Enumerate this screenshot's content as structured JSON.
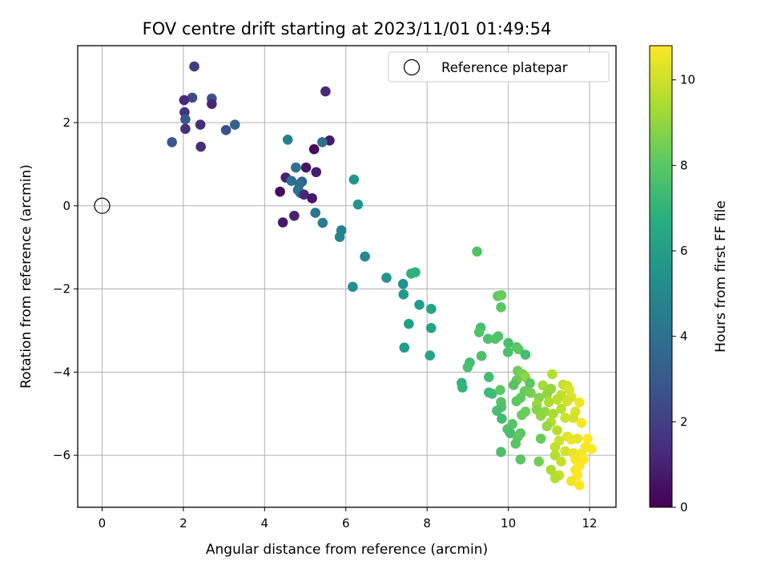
{
  "chart_data": {
    "type": "scatter",
    "title": "FOV centre drift starting at 2023/11/01 01:49:54",
    "xlabel": "Angular distance from reference (arcmin)",
    "ylabel": "Rotation from reference (arcmin)",
    "xlim": [
      -0.6,
      12.65
    ],
    "ylim": [
      -7.25,
      3.85
    ],
    "xticks": [
      0,
      2,
      4,
      6,
      8,
      10,
      12
    ],
    "yticks": [
      -6,
      -4,
      -2,
      0,
      2
    ],
    "grid": true,
    "legend": {
      "placement": "top-right",
      "entries": [
        "Reference platepar"
      ]
    },
    "reference_point": {
      "x": 0,
      "y": 0,
      "label": "Reference platepar"
    },
    "colorbar": {
      "label": "Hours from first FF file",
      "colormap": "viridis",
      "range": [
        0,
        10.8
      ],
      "ticks": [
        0,
        2,
        4,
        6,
        8,
        10
      ]
    },
    "points": [
      {
        "x": 2.27,
        "y": 3.35,
        "c": 2.0
      },
      {
        "x": 2.22,
        "y": 2.6,
        "c": 2.5
      },
      {
        "x": 2.02,
        "y": 2.54,
        "c": 1.3
      },
      {
        "x": 2.7,
        "y": 2.58,
        "c": 2.8
      },
      {
        "x": 2.7,
        "y": 2.45,
        "c": 1.2
      },
      {
        "x": 2.03,
        "y": 2.25,
        "c": 1.6
      },
      {
        "x": 2.05,
        "y": 2.08,
        "c": 3.0
      },
      {
        "x": 2.05,
        "y": 1.85,
        "c": 1.5
      },
      {
        "x": 2.42,
        "y": 1.95,
        "c": 1.4
      },
      {
        "x": 3.27,
        "y": 1.95,
        "c": 3.4
      },
      {
        "x": 3.05,
        "y": 1.82,
        "c": 2.6
      },
      {
        "x": 1.72,
        "y": 1.53,
        "c": 2.9
      },
      {
        "x": 2.43,
        "y": 1.42,
        "c": 1.4
      },
      {
        "x": 5.5,
        "y": 2.75,
        "c": 1.2
      },
      {
        "x": 4.57,
        "y": 1.59,
        "c": 4.7
      },
      {
        "x": 5.6,
        "y": 1.57,
        "c": 0.8
      },
      {
        "x": 5.42,
        "y": 1.53,
        "c": 3.9
      },
      {
        "x": 5.22,
        "y": 1.36,
        "c": 0.2
      },
      {
        "x": 4.77,
        "y": 0.92,
        "c": 4.0
      },
      {
        "x": 5.02,
        "y": 0.92,
        "c": 0.6
      },
      {
        "x": 5.27,
        "y": 0.81,
        "c": 0.9
      },
      {
        "x": 4.52,
        "y": 0.68,
        "c": 1.0
      },
      {
        "x": 4.66,
        "y": 0.6,
        "c": 4.0
      },
      {
        "x": 4.92,
        "y": 0.58,
        "c": 3.4
      },
      {
        "x": 4.86,
        "y": 0.52,
        "c": 3.8
      },
      {
        "x": 4.82,
        "y": 0.38,
        "c": 4.1
      },
      {
        "x": 4.38,
        "y": 0.34,
        "c": 0.2
      },
      {
        "x": 4.88,
        "y": 0.31,
        "c": 4.0
      },
      {
        "x": 4.97,
        "y": 0.27,
        "c": 1.2
      },
      {
        "x": 5.17,
        "y": 0.18,
        "c": 0.7
      },
      {
        "x": 6.2,
        "y": 0.63,
        "c": 5.7
      },
      {
        "x": 6.3,
        "y": 0.03,
        "c": 5.6
      },
      {
        "x": 5.25,
        "y": -0.17,
        "c": 4.2
      },
      {
        "x": 4.73,
        "y": -0.24,
        "c": 1.0
      },
      {
        "x": 4.45,
        "y": -0.4,
        "c": 0.8
      },
      {
        "x": 5.43,
        "y": -0.41,
        "c": 4.5
      },
      {
        "x": 5.89,
        "y": -0.59,
        "c": 4.8
      },
      {
        "x": 5.85,
        "y": -0.75,
        "c": 4.9
      },
      {
        "x": 6.47,
        "y": -1.22,
        "c": 5.0
      },
      {
        "x": 6.17,
        "y": -1.95,
        "c": 5.3
      },
      {
        "x": 7.0,
        "y": -1.73,
        "c": 5.6
      },
      {
        "x": 7.41,
        "y": -1.88,
        "c": 5.4
      },
      {
        "x": 7.61,
        "y": -1.63,
        "c": 6.8
      },
      {
        "x": 7.71,
        "y": -1.6,
        "c": 6.9
      },
      {
        "x": 7.42,
        "y": -2.13,
        "c": 5.8
      },
      {
        "x": 7.81,
        "y": -2.38,
        "c": 6.0
      },
      {
        "x": 8.1,
        "y": -2.48,
        "c": 6.3
      },
      {
        "x": 7.55,
        "y": -2.84,
        "c": 6.1
      },
      {
        "x": 8.1,
        "y": -2.94,
        "c": 6.2
      },
      {
        "x": 7.44,
        "y": -3.41,
        "c": 5.9
      },
      {
        "x": 8.07,
        "y": -3.6,
        "c": 6.4
      },
      {
        "x": 9.23,
        "y": -1.1,
        "c": 7.8
      },
      {
        "x": 9.74,
        "y": -2.17,
        "c": 8.1
      },
      {
        "x": 9.83,
        "y": -2.15,
        "c": 8.3
      },
      {
        "x": 9.82,
        "y": -2.44,
        "c": 8.0
      },
      {
        "x": 9.32,
        "y": -2.93,
        "c": 7.5
      },
      {
        "x": 9.28,
        "y": -3.04,
        "c": 7.8
      },
      {
        "x": 9.5,
        "y": -3.2,
        "c": 7.7
      },
      {
        "x": 9.68,
        "y": -3.2,
        "c": 7.9
      },
      {
        "x": 9.75,
        "y": -3.14,
        "c": 7.8
      },
      {
        "x": 10.0,
        "y": -3.3,
        "c": 7.6
      },
      {
        "x": 9.99,
        "y": -3.52,
        "c": 7.7
      },
      {
        "x": 10.2,
        "y": -3.4,
        "c": 7.9
      },
      {
        "x": 10.25,
        "y": -3.45,
        "c": 8.0
      },
      {
        "x": 10.42,
        "y": -3.58,
        "c": 7.5
      },
      {
        "x": 9.34,
        "y": -3.61,
        "c": 7.7
      },
      {
        "x": 9.05,
        "y": -3.77,
        "c": 7.4
      },
      {
        "x": 9.0,
        "y": -3.88,
        "c": 7.6
      },
      {
        "x": 10.23,
        "y": -3.97,
        "c": 8.4
      },
      {
        "x": 10.35,
        "y": -4.05,
        "c": 8.6
      },
      {
        "x": 10.42,
        "y": -4.12,
        "c": 8.9
      },
      {
        "x": 10.2,
        "y": -4.2,
        "c": 8.3
      },
      {
        "x": 10.53,
        "y": -4.27,
        "c": 8.0
      },
      {
        "x": 10.13,
        "y": -4.31,
        "c": 7.9
      },
      {
        "x": 9.52,
        "y": -4.12,
        "c": 7.5
      },
      {
        "x": 8.85,
        "y": -4.26,
        "c": 7.0
      },
      {
        "x": 8.87,
        "y": -4.37,
        "c": 7.1
      },
      {
        "x": 9.52,
        "y": -4.49,
        "c": 7.3
      },
      {
        "x": 9.6,
        "y": -4.52,
        "c": 7.4
      },
      {
        "x": 9.8,
        "y": -4.43,
        "c": 8.0
      },
      {
        "x": 10.4,
        "y": -4.46,
        "c": 8.3
      },
      {
        "x": 10.55,
        "y": -4.5,
        "c": 8.5
      },
      {
        "x": 10.3,
        "y": -4.62,
        "c": 8.2
      },
      {
        "x": 10.2,
        "y": -4.7,
        "c": 8.1
      },
      {
        "x": 9.82,
        "y": -4.72,
        "c": 7.9
      },
      {
        "x": 9.83,
        "y": -4.84,
        "c": 7.8
      },
      {
        "x": 9.72,
        "y": -4.93,
        "c": 7.6
      },
      {
        "x": 10.42,
        "y": -4.95,
        "c": 8.4
      },
      {
        "x": 10.33,
        "y": -5.03,
        "c": 8.3
      },
      {
        "x": 9.84,
        "y": -5.12,
        "c": 7.5
      },
      {
        "x": 10.1,
        "y": -5.25,
        "c": 7.9
      },
      {
        "x": 9.98,
        "y": -5.37,
        "c": 7.8
      },
      {
        "x": 10.05,
        "y": -5.47,
        "c": 7.6
      },
      {
        "x": 10.3,
        "y": -5.47,
        "c": 8.0
      },
      {
        "x": 10.23,
        "y": -5.56,
        "c": 8.1
      },
      {
        "x": 10.18,
        "y": -5.72,
        "c": 7.9
      },
      {
        "x": 9.82,
        "y": -5.92,
        "c": 7.7
      },
      {
        "x": 10.3,
        "y": -6.1,
        "c": 8.0
      },
      {
        "x": 10.8,
        "y": -5.6,
        "c": 8.3
      },
      {
        "x": 10.75,
        "y": -6.15,
        "c": 8.5
      },
      {
        "x": 11.08,
        "y": -4.05,
        "c": 9.6
      },
      {
        "x": 10.85,
        "y": -4.32,
        "c": 9.3
      },
      {
        "x": 11.05,
        "y": -4.4,
        "c": 9.1
      },
      {
        "x": 10.95,
        "y": -4.53,
        "c": 9.0
      },
      {
        "x": 10.75,
        "y": -4.62,
        "c": 8.8
      },
      {
        "x": 11.35,
        "y": -4.3,
        "c": 9.8
      },
      {
        "x": 11.45,
        "y": -4.33,
        "c": 10.0
      },
      {
        "x": 11.5,
        "y": -4.42,
        "c": 10.2
      },
      {
        "x": 11.3,
        "y": -4.55,
        "c": 9.8
      },
      {
        "x": 11.55,
        "y": -4.6,
        "c": 10.3
      },
      {
        "x": 11.45,
        "y": -4.7,
        "c": 10.1
      },
      {
        "x": 11.2,
        "y": -4.66,
        "c": 9.7
      },
      {
        "x": 11.0,
        "y": -4.72,
        "c": 9.5
      },
      {
        "x": 10.7,
        "y": -4.78,
        "c": 9.2
      },
      {
        "x": 10.7,
        "y": -4.9,
        "c": 8.8
      },
      {
        "x": 10.9,
        "y": -4.95,
        "c": 9.1
      },
      {
        "x": 11.1,
        "y": -5.0,
        "c": 9.4
      },
      {
        "x": 10.8,
        "y": -5.05,
        "c": 9.0
      },
      {
        "x": 11.3,
        "y": -4.88,
        "c": 9.7
      },
      {
        "x": 11.65,
        "y": -4.95,
        "c": 10.2
      },
      {
        "x": 11.75,
        "y": -4.73,
        "c": 10.6
      },
      {
        "x": 11.4,
        "y": -5.1,
        "c": 10.0
      },
      {
        "x": 11.6,
        "y": -5.1,
        "c": 10.1
      },
      {
        "x": 11.05,
        "y": -5.2,
        "c": 9.6
      },
      {
        "x": 10.95,
        "y": -5.3,
        "c": 9.1
      },
      {
        "x": 11.2,
        "y": -5.4,
        "c": 9.7
      },
      {
        "x": 11.8,
        "y": -5.22,
        "c": 10.7
      },
      {
        "x": 11.45,
        "y": -5.55,
        "c": 10.3
      },
      {
        "x": 11.55,
        "y": -5.62,
        "c": 10.5
      },
      {
        "x": 11.7,
        "y": -5.6,
        "c": 10.4
      },
      {
        "x": 11.25,
        "y": -5.65,
        "c": 10.0
      },
      {
        "x": 11.15,
        "y": -5.8,
        "c": 9.8
      },
      {
        "x": 11.95,
        "y": -5.6,
        "c": 10.8
      },
      {
        "x": 12.05,
        "y": -5.85,
        "c": 10.8
      },
      {
        "x": 11.9,
        "y": -5.8,
        "c": 10.7
      },
      {
        "x": 11.4,
        "y": -5.9,
        "c": 10.1
      },
      {
        "x": 11.6,
        "y": -5.95,
        "c": 10.4
      },
      {
        "x": 11.8,
        "y": -5.95,
        "c": 10.6
      },
      {
        "x": 11.15,
        "y": -6.0,
        "c": 9.6
      },
      {
        "x": 11.85,
        "y": -6.1,
        "c": 10.8
      },
      {
        "x": 11.65,
        "y": -6.1,
        "c": 10.6
      },
      {
        "x": 11.3,
        "y": -6.15,
        "c": 9.9
      },
      {
        "x": 11.75,
        "y": -6.25,
        "c": 10.8
      },
      {
        "x": 11.05,
        "y": -6.35,
        "c": 9.5
      },
      {
        "x": 11.65,
        "y": -6.35,
        "c": 10.7
      },
      {
        "x": 11.25,
        "y": -6.48,
        "c": 9.8
      },
      {
        "x": 11.15,
        "y": -6.55,
        "c": 9.6
      },
      {
        "x": 11.7,
        "y": -6.48,
        "c": 10.8
      },
      {
        "x": 11.55,
        "y": -6.62,
        "c": 10.6
      },
      {
        "x": 11.75,
        "y": -6.72,
        "c": 10.8
      }
    ]
  }
}
